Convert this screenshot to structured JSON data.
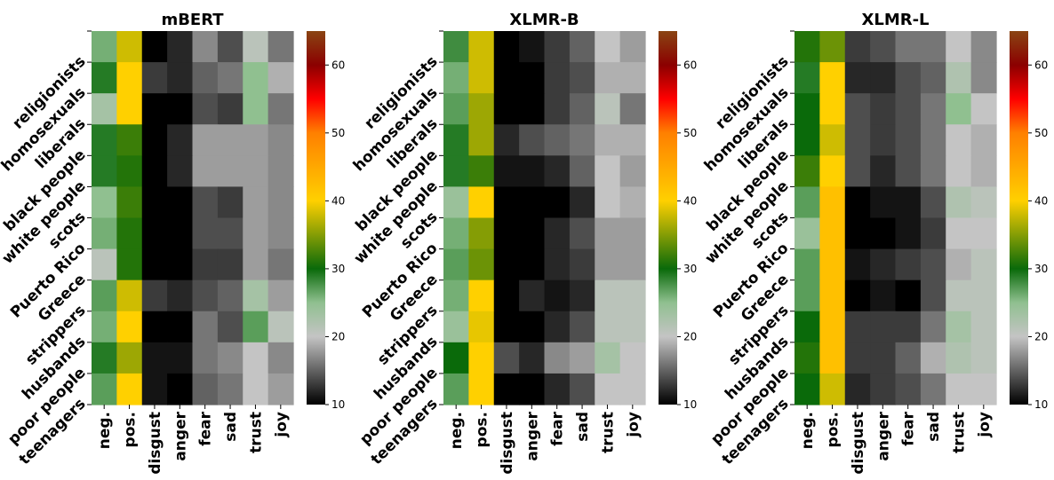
{
  "chart_data": {
    "type": "heatmap",
    "colorbar": {
      "range": [
        10,
        65
      ],
      "ticks": [
        10,
        20,
        30,
        40,
        50,
        60
      ],
      "stops": [
        {
          "v": 10,
          "c": "#000000"
        },
        {
          "v": 20,
          "c": "#c4c4c4"
        },
        {
          "v": 25,
          "c": "#90c090"
        },
        {
          "v": 30,
          "c": "#0a6a0a"
        },
        {
          "v": 40,
          "c": "#ffd000"
        },
        {
          "v": 50,
          "c": "#ff8000"
        },
        {
          "v": 55,
          "c": "#ff0000"
        },
        {
          "v": 60,
          "c": "#8b0000"
        },
        {
          "v": 65,
          "c": "#8a4513"
        }
      ]
    },
    "row_labels": [
      "religionists",
      "homosexuals",
      "liberals",
      "black people",
      "white people",
      "scots",
      "Puerto Rico",
      "Greece",
      "strippers",
      "husbands",
      "poor people",
      "teenagers"
    ],
    "col_labels": [
      "neg.",
      "pos.",
      "disgust",
      "anger",
      "fear",
      "sad",
      "trust",
      "joy"
    ],
    "panels": [
      {
        "title": "mBERT",
        "values": [
          [
            26,
            38,
            10,
            12,
            17,
            14,
            21,
            16
          ],
          [
            29,
            40,
            13,
            12,
            15,
            16,
            25,
            19
          ],
          [
            23,
            40,
            10,
            10,
            14,
            13,
            25,
            16
          ],
          [
            29,
            32,
            10,
            12,
            18,
            18,
            18,
            17
          ],
          [
            29,
            31,
            10,
            12,
            18,
            18,
            18,
            17
          ],
          [
            25,
            32,
            10,
            10,
            14,
            13,
            18,
            17
          ],
          [
            26,
            31,
            10,
            10,
            14,
            14,
            18,
            17
          ],
          [
            21,
            31,
            10,
            10,
            13,
            13,
            18,
            16
          ],
          [
            27,
            38,
            13,
            12,
            14,
            15,
            23,
            18
          ],
          [
            26,
            40,
            10,
            10,
            16,
            14,
            27,
            21
          ],
          [
            29,
            36,
            11,
            11,
            16,
            17,
            20,
            17
          ],
          [
            27,
            40,
            11,
            10,
            15,
            16,
            20,
            18
          ]
        ]
      },
      {
        "title": "XLMR-B",
        "values": [
          [
            28,
            38,
            10,
            11,
            13,
            15,
            20,
            18
          ],
          [
            26,
            38,
            10,
            10,
            13,
            14,
            19,
            19
          ],
          [
            27,
            36,
            10,
            10,
            13,
            15,
            21,
            16
          ],
          [
            29,
            36,
            12,
            14,
            15,
            16,
            19,
            19
          ],
          [
            29,
            32,
            11,
            11,
            12,
            15,
            20,
            18
          ],
          [
            24,
            40,
            10,
            10,
            10,
            12,
            20,
            19
          ],
          [
            26,
            35,
            10,
            10,
            12,
            14,
            18,
            18
          ],
          [
            27,
            34,
            10,
            10,
            12,
            13,
            18,
            18
          ],
          [
            26,
            40,
            10,
            12,
            11,
            12,
            21,
            21
          ],
          [
            24,
            39,
            10,
            10,
            12,
            14,
            21,
            21
          ],
          [
            30,
            40,
            14,
            12,
            17,
            18,
            23,
            20
          ],
          [
            27,
            40,
            10,
            10,
            12,
            14,
            20,
            20
          ]
        ]
      },
      {
        "title": "XLMR-L",
        "values": [
          [
            31,
            34,
            13,
            14,
            16,
            16,
            20,
            17
          ],
          [
            29,
            40,
            12,
            12,
            14,
            15,
            22,
            17
          ],
          [
            30,
            40,
            14,
            13,
            14,
            16,
            25,
            20
          ],
          [
            30,
            38,
            14,
            13,
            14,
            16,
            20,
            19
          ],
          [
            32,
            40,
            14,
            12,
            14,
            16,
            20,
            19
          ],
          [
            27,
            42,
            10,
            11,
            11,
            14,
            22,
            21
          ],
          [
            24,
            42,
            10,
            10,
            11,
            13,
            20,
            20
          ],
          [
            27,
            42,
            11,
            12,
            13,
            14,
            19,
            21
          ],
          [
            27,
            42,
            10,
            11,
            10,
            14,
            21,
            21
          ],
          [
            30,
            42,
            13,
            13,
            13,
            16,
            23,
            21
          ],
          [
            31,
            42,
            13,
            13,
            15,
            19,
            22,
            21
          ],
          [
            30,
            38,
            12,
            13,
            14,
            16,
            20,
            20
          ]
        ]
      }
    ]
  }
}
